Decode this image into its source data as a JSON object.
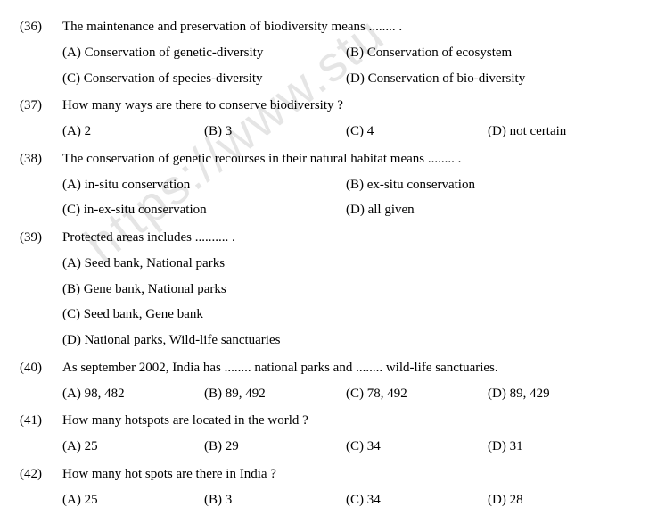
{
  "watermark": "https://www.stu",
  "questions": [
    {
      "num": "(36)",
      "text": "The maintenance and preservation of biodiversity means ........ .",
      "layout": "2",
      "options": [
        "(A) Conservation of genetic-diversity",
        "(B) Conservation of ecosystem",
        "(C) Conservation of species-diversity",
        "(D) Conservation of bio-diversity"
      ]
    },
    {
      "num": "(37)",
      "text": "How many ways are there to conserve biodiversity ?",
      "layout": "4",
      "options": [
        "(A) 2",
        "(B) 3",
        "(C) 4",
        "(D) not certain"
      ]
    },
    {
      "num": "(38)",
      "text": "The conservation of genetic recourses in their natural habitat means ........ .",
      "layout": "2",
      "options": [
        "(A) in-situ conservation",
        "(B) ex-situ conservation",
        "(C) in-ex-situ conservation",
        "(D) all given"
      ]
    },
    {
      "num": "(39)",
      "text": "Protected areas includes .......... .",
      "layout": "1",
      "options": [
        "(A) Seed bank, National parks",
        "(B) Gene bank, National parks",
        "(C) Seed bank, Gene bank",
        "(D) National parks, Wild-life sanctuaries"
      ]
    },
    {
      "num": "(40)",
      "text": "As september 2002, India has ........ national parks and ........ wild-life sanctuaries.",
      "layout": "4",
      "options": [
        "(A) 98, 482",
        "(B) 89, 492",
        "(C) 78, 492",
        "(D) 89, 429"
      ]
    },
    {
      "num": "(41)",
      "text": "How many hotspots are located in the world ?",
      "layout": "4",
      "options": [
        "(A) 25",
        "(B) 29",
        "(C) 34",
        "(D) 31"
      ]
    },
    {
      "num": "(42)",
      "text": "How many hot spots are there in India ?",
      "layout": "4",
      "options": [
        "(A) 25",
        "(B) 3",
        "(C) 34",
        "(D) 28"
      ]
    }
  ]
}
